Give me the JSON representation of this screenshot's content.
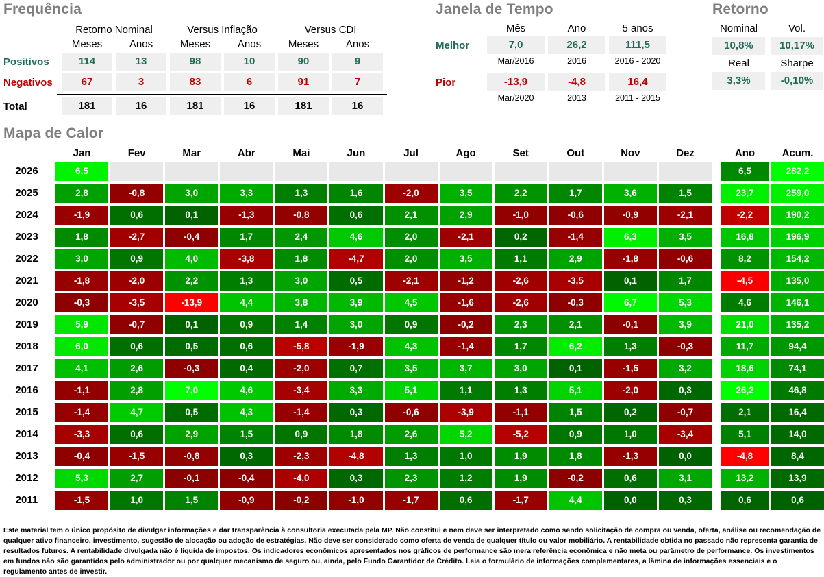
{
  "frequencia": {
    "title": "Frequência",
    "col_groups": [
      "Retorno Nominal",
      "Versus Inflação",
      "Versus CDI"
    ],
    "sub_headers": [
      "Meses",
      "Anos",
      "Meses",
      "Anos",
      "Meses",
      "Anos"
    ],
    "rows": [
      {
        "label": "Positivos",
        "type": "positive",
        "values": [
          "114",
          "13",
          "98",
          "10",
          "90",
          "9"
        ]
      },
      {
        "label": "Negativos",
        "type": "negative",
        "values": [
          "67",
          "3",
          "83",
          "6",
          "91",
          "7"
        ]
      },
      {
        "label": "Total",
        "type": "total",
        "values": [
          "181",
          "16",
          "181",
          "16",
          "181",
          "16"
        ]
      }
    ]
  },
  "janela": {
    "title": "Janela de Tempo",
    "headers": [
      "Mês",
      "Ano",
      "5 anos"
    ],
    "rows": [
      {
        "label": "Melhor",
        "type": "positive",
        "values": [
          "7,0",
          "26,2",
          "111,5"
        ],
        "periods": [
          "Mar/2016",
          "2016",
          "2016 - 2020"
        ]
      },
      {
        "label": "Pior",
        "type": "negative",
        "values": [
          "-13,9",
          "-4,8",
          "16,4"
        ],
        "periods": [
          "Mar/2020",
          "2013",
          "2011 - 2015"
        ]
      }
    ]
  },
  "retorno": {
    "title": "Retorno",
    "rows": [
      {
        "headers": [
          "Nominal",
          "Vol."
        ],
        "values": [
          "10,8%",
          "10,17%"
        ]
      },
      {
        "headers": [
          "Real",
          "Sharpe"
        ],
        "values": [
          "3,3%",
          "-0,10%"
        ]
      }
    ]
  },
  "chart_data": {
    "type": "heatmap",
    "title": "Mapa de Calor",
    "month_headers": [
      "Jan",
      "Fev",
      "Mar",
      "Abr",
      "Mai",
      "Jun",
      "Jul",
      "Ago",
      "Set",
      "Out",
      "Nov",
      "Dez"
    ],
    "extra_headers": [
      "Ano",
      "Acum."
    ],
    "years": [
      "2026",
      "2025",
      "2024",
      "2023",
      "2022",
      "2021",
      "2020",
      "2019",
      "2018",
      "2017",
      "2016",
      "2015",
      "2014",
      "2013",
      "2012",
      "2011"
    ],
    "months_values": [
      [
        6.5,
        null,
        null,
        null,
        null,
        null,
        null,
        null,
        null,
        null,
        null,
        null
      ],
      [
        2.8,
        -0.8,
        3.0,
        3.3,
        1.3,
        1.6,
        -2.0,
        3.5,
        2.2,
        1.7,
        3.6,
        1.5
      ],
      [
        -1.9,
        0.6,
        0.1,
        -1.3,
        -0.8,
        0.6,
        2.1,
        2.9,
        -1.0,
        -0.6,
        -0.9,
        -2.1
      ],
      [
        1.8,
        -2.7,
        -0.4,
        1.7,
        2.4,
        4.6,
        2.0,
        -2.1,
        0.2,
        -1.4,
        6.3,
        3.5
      ],
      [
        3.0,
        0.9,
        4.0,
        -3.8,
        1.8,
        -4.7,
        2.0,
        3.5,
        1.1,
        2.9,
        -1.8,
        -0.6
      ],
      [
        -1.8,
        -2.0,
        2.2,
        1.3,
        3.0,
        0.5,
        -2.1,
        -1.2,
        -2.6,
        -3.5,
        0.1,
        1.7
      ],
      [
        -0.3,
        -3.5,
        -13.9,
        4.4,
        3.8,
        3.9,
        4.5,
        -1.6,
        -2.6,
        -0.3,
        6.7,
        5.3
      ],
      [
        5.9,
        -0.7,
        0.1,
        0.9,
        1.4,
        3.0,
        0.9,
        -0.2,
        2.3,
        2.1,
        -0.1,
        3.9
      ],
      [
        6.0,
        0.6,
        0.5,
        0.6,
        -5.8,
        -1.9,
        4.3,
        -1.4,
        1.7,
        6.2,
        1.3,
        -0.3
      ],
      [
        4.1,
        2.6,
        -0.3,
        0.4,
        -2.0,
        0.7,
        3.5,
        3.7,
        3.0,
        0.1,
        -1.5,
        3.2
      ],
      [
        -1.1,
        2.8,
        7.0,
        4.6,
        -3.4,
        3.3,
        5.1,
        1.1,
        1.3,
        5.1,
        -2.0,
        0.3
      ],
      [
        -1.4,
        4.7,
        0.5,
        4.3,
        -1.4,
        0.3,
        -0.6,
        -3.9,
        -1.1,
        1.5,
        0.2,
        -0.7
      ],
      [
        -3.3,
        0.6,
        2.9,
        1.5,
        0.9,
        1.8,
        2.6,
        5.2,
        -5.2,
        0.9,
        1.0,
        -3.4
      ],
      [
        -0.4,
        -1.5,
        -0.8,
        0.3,
        -2.3,
        -4.8,
        1.3,
        1.0,
        1.9,
        1.8,
        -1.3,
        0.0
      ],
      [
        5.3,
        2.7,
        -0.1,
        -0.4,
        -4.0,
        0.3,
        2.3,
        1.2,
        1.9,
        -0.2,
        0.6,
        3.1
      ],
      [
        -1.5,
        1.0,
        1.5,
        -0.9,
        -0.2,
        -1.0,
        -1.7,
        0.6,
        -1.7,
        4.4,
        0.0,
        0.3
      ]
    ],
    "ano_values": [
      6.5,
      23.7,
      -2.2,
      16.8,
      8.2,
      -4.5,
      4.6,
      21.0,
      11.7,
      18.6,
      26.2,
      2.1,
      5.1,
      -4.8,
      13.2,
      0.6
    ],
    "acum_values": [
      282.2,
      259.0,
      190.2,
      196.9,
      154.2,
      135.0,
      146.1,
      135.2,
      94.4,
      74.1,
      46.8,
      16.4,
      14.0,
      8.4,
      13.9,
      0.6
    ],
    "color_scale": {
      "scaling": "per-group (months, ano, acum)",
      "pos_dark": "#006100",
      "pos_bright": "#00FF00",
      "neg_dark": "#8B0000",
      "neg_bright": "#FF0000",
      "empty": "#E8E8E8"
    }
  },
  "colors": {
    "title_gray": "#7F7F7F",
    "positive_text": "#1F6B55",
    "negative_text": "#C00000",
    "band_gray": "#EFEFEF"
  },
  "disclaimer": "Este material tem o único propósito de divulgar informações e dar transparência à consultoria executada pela MP. Não constitui e nem deve ser interpretado como sendo solicitação de compra ou venda, oferta, análise ou recomendação de qualquer ativo financeiro, investimento, sugestão de alocação ou adoção de estratégias. Não deve ser considerado como oferta de venda de qualquer título ou valor mobiliário. A rentabilidade obtida no passado não representa garantia de resultados futuros. A rentabilidade divulgada não é líquida de impostos. Os indicadores econômicos apresentados nos gráficos de performance são mera referência econômica e não meta ou parâmetro de performance. Os investimentos em fundos não são garantidos pelo administrador ou por qualquer mecanismo de seguro ou, ainda, pelo Fundo Garantidor de Crédito. Leia o formulário de informações complementares, a lâmina de informações essenciais e o regulamento antes de investir."
}
